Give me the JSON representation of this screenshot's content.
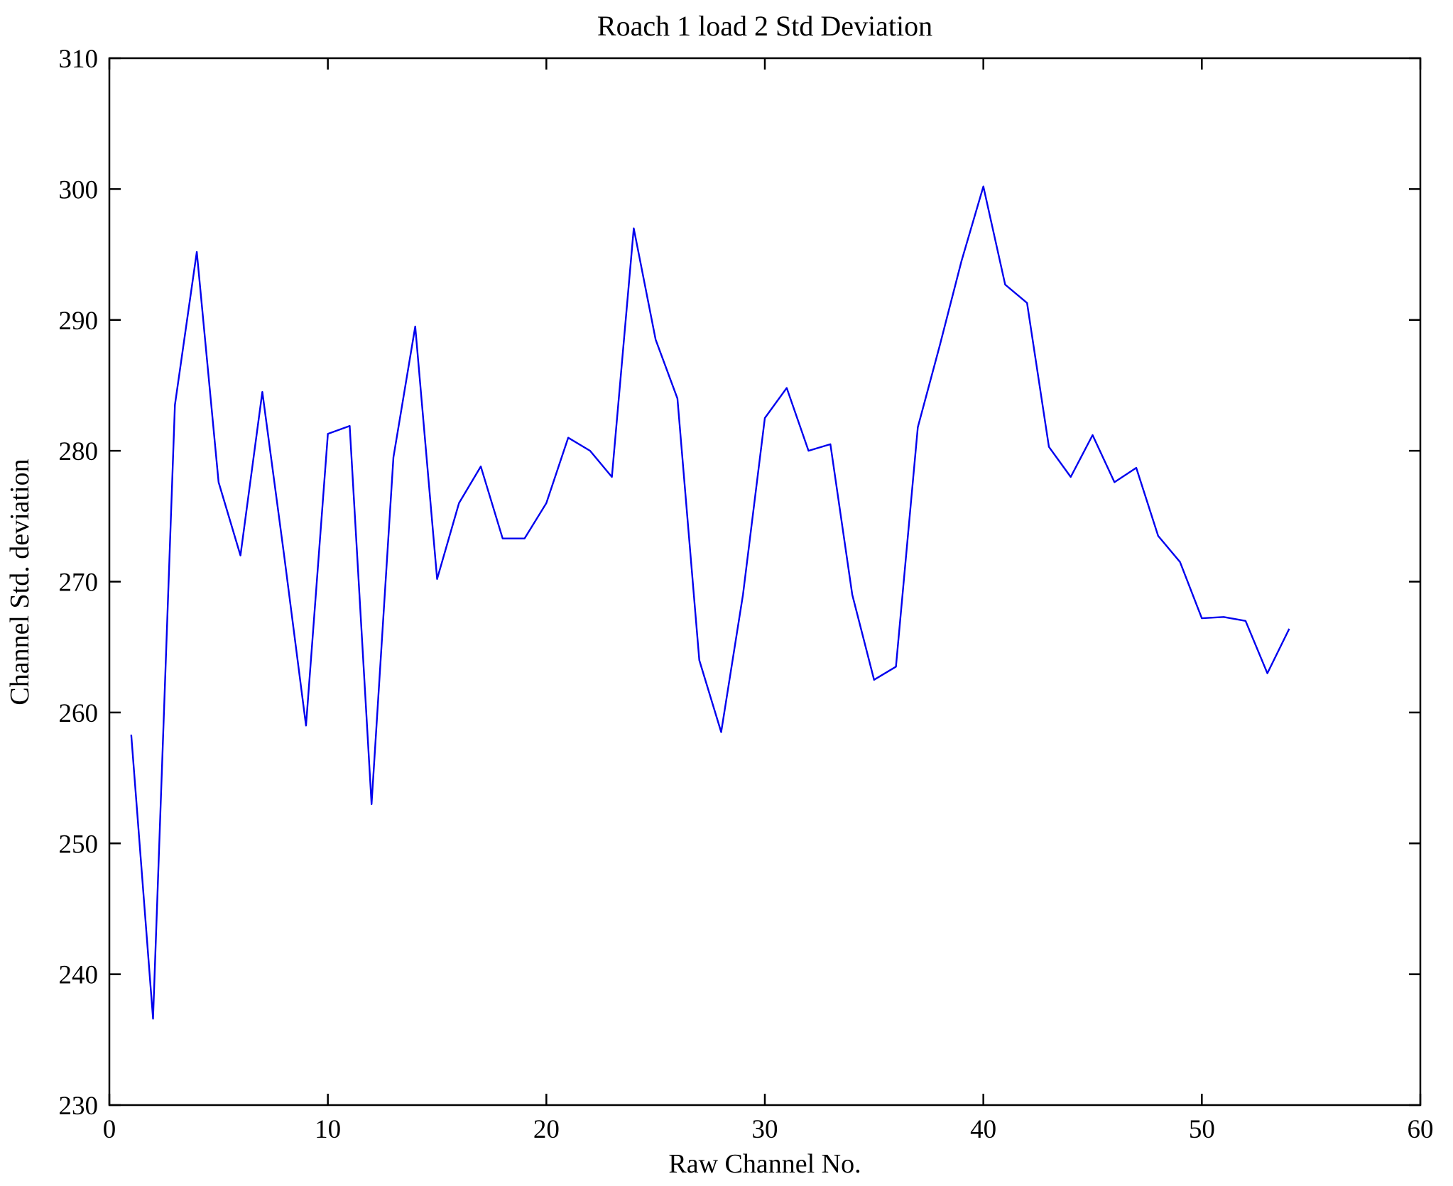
{
  "chart_data": {
    "type": "line",
    "title": "Roach 1 load 2 Std Deviation",
    "xlabel": "Raw Channel No.",
    "ylabel": "Channel Std. deviation",
    "xlim": [
      0,
      60
    ],
    "ylim": [
      230,
      310
    ],
    "xticks": [
      0,
      10,
      20,
      30,
      40,
      50,
      60
    ],
    "yticks": [
      230,
      240,
      250,
      260,
      270,
      280,
      290,
      300,
      310
    ],
    "grid": false,
    "legend": "none",
    "line_color": "#0000ee",
    "axes_color": "#000000",
    "x": [
      1,
      2,
      3,
      4,
      5,
      6,
      7,
      8,
      9,
      10,
      11,
      12,
      13,
      14,
      15,
      16,
      17,
      18,
      19,
      20,
      21,
      22,
      23,
      24,
      25,
      26,
      27,
      28,
      29,
      30,
      31,
      32,
      33,
      34,
      35,
      36,
      37,
      38,
      39,
      40,
      41,
      42,
      43,
      44,
      45,
      46,
      47,
      48,
      49,
      50,
      51,
      52,
      53,
      54
    ],
    "y": [
      258.3,
      236.6,
      283.5,
      295.2,
      277.6,
      272.0,
      284.5,
      272.0,
      259.0,
      281.3,
      281.9,
      253.0,
      279.5,
      289.5,
      270.2,
      276.0,
      278.8,
      273.3,
      273.3,
      276.0,
      281.0,
      280.0,
      278.0,
      297.0,
      288.5,
      284.0,
      264.0,
      258.5,
      269.0,
      282.5,
      284.8,
      280.0,
      280.5,
      269.0,
      262.5,
      263.5,
      281.8,
      288.0,
      294.5,
      300.2,
      292.7,
      291.3,
      280.3,
      278.0,
      281.2,
      277.6,
      278.7,
      273.5,
      271.5,
      267.2,
      267.3,
      267.0,
      263.0,
      266.4
    ]
  }
}
